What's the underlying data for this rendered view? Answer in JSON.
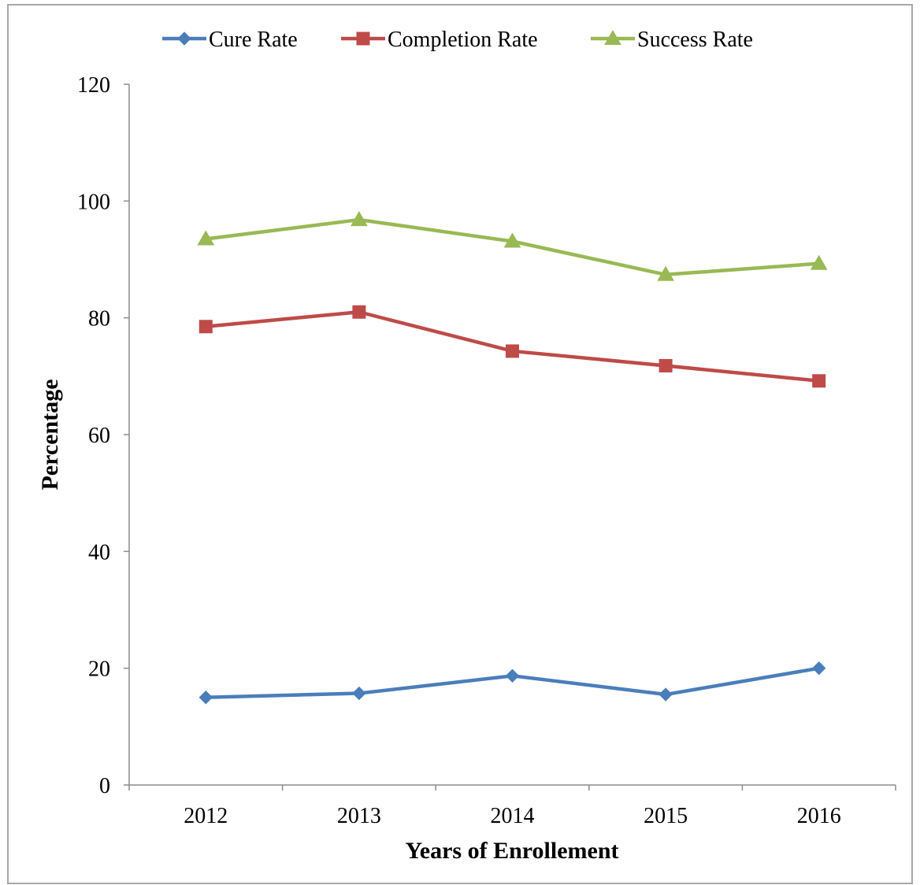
{
  "chart_data": {
    "type": "line",
    "title": "",
    "xlabel": "Years of Enrollement",
    "ylabel": "Percentage",
    "categories": [
      "2012",
      "2013",
      "2014",
      "2015",
      "2016"
    ],
    "ylim": [
      0,
      120
    ],
    "yticks": [
      0,
      20,
      40,
      60,
      80,
      100,
      120
    ],
    "grid": false,
    "legend_position": "top",
    "series": [
      {
        "name": "Cure Rate",
        "values": [
          15.0,
          15.7,
          18.7,
          15.5,
          20.0
        ],
        "color": "#4a7ebb",
        "marker": "diamond"
      },
      {
        "name": "Completion Rate",
        "values": [
          78.5,
          81.0,
          74.3,
          71.8,
          69.2
        ],
        "color": "#be4b48",
        "marker": "square"
      },
      {
        "name": "Success Rate",
        "values": [
          93.5,
          96.8,
          93.1,
          87.4,
          89.3
        ],
        "color": "#98b954",
        "marker": "triangle"
      }
    ]
  }
}
